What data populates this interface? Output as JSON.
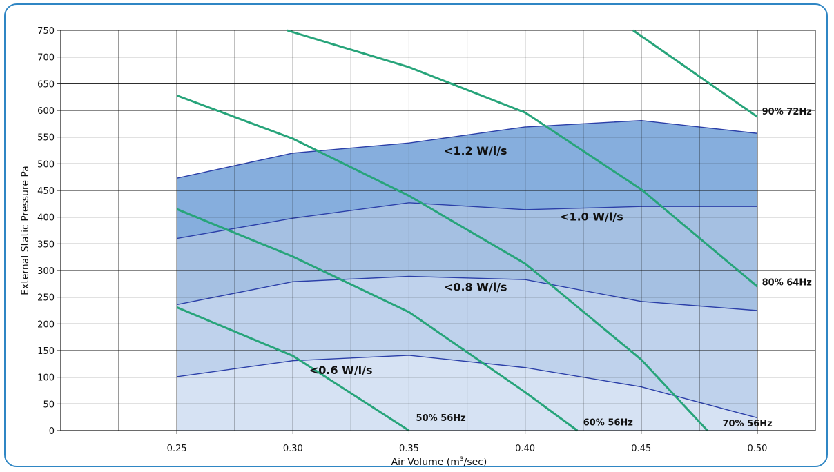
{
  "chart_data": {
    "type": "area",
    "xlabel_main": "Air Volume (m",
    "xlabel_sup": "3",
    "xlabel_tail": "/sec)",
    "ylabel": "External Static Pressure Pa",
    "xlim": [
      0.2,
      0.525
    ],
    "ylim": [
      0,
      750
    ],
    "x_ticks": [
      {
        "value": 0.25,
        "label": "0.25"
      },
      {
        "value": 0.3,
        "label": "0.30"
      },
      {
        "value": 0.35,
        "label": "0.35"
      },
      {
        "value": 0.4,
        "label": "0.40"
      },
      {
        "value": 0.45,
        "label": "0.45"
      },
      {
        "value": 0.5,
        "label": "0.50"
      }
    ],
    "y_ticks": [
      0,
      50,
      100,
      150,
      200,
      250,
      300,
      350,
      400,
      450,
      500,
      550,
      600,
      650,
      700,
      750
    ],
    "grid": true,
    "bands": [
      {
        "name": "<1.2 W/l/s",
        "color": "#86aedd",
        "label_x": 0.365,
        "label_y": 517,
        "x": [
          0.25,
          0.3,
          0.35,
          0.4,
          0.45,
          0.5
        ],
        "y": [
          473,
          520,
          539,
          569,
          581,
          557
        ]
      },
      {
        "name": "<1.0 W/l/s",
        "color": "#a5c0e2",
        "label_x": 0.415,
        "label_y": 394,
        "x": [
          0.25,
          0.3,
          0.35,
          0.4,
          0.45,
          0.5
        ],
        "y": [
          360,
          398,
          427,
          414,
          420,
          420
        ]
      },
      {
        "name": "<0.8 W/l/s",
        "color": "#bfd2ec",
        "label_x": 0.365,
        "label_y": 262,
        "x": [
          0.25,
          0.3,
          0.35,
          0.4,
          0.45,
          0.5
        ],
        "y": [
          236,
          279,
          289,
          283,
          242,
          225
        ]
      },
      {
        "name": "<0.6 W/l/s",
        "color": "#d6e2f3",
        "label_x": 0.307,
        "label_y": 106,
        "x": [
          0.25,
          0.3,
          0.35,
          0.4,
          0.45,
          0.5
        ],
        "y": [
          101,
          131,
          141,
          118,
          82,
          24
        ]
      }
    ],
    "fan_curves": [
      {
        "name": "50% 56Hz",
        "label_x": 0.353,
        "label_y": 18,
        "x": [
          0.25,
          0.3,
          0.35
        ],
        "y": [
          231,
          140,
          0
        ]
      },
      {
        "name": "60% 56Hz",
        "label_x": 0.425,
        "label_y": 10,
        "x": [
          0.25,
          0.3,
          0.35,
          0.4,
          0.4225
        ],
        "y": [
          415,
          326,
          222,
          72,
          0
        ]
      },
      {
        "name": "70% 56Hz",
        "label_x": 0.485,
        "label_y": 8,
        "x": [
          0.25,
          0.3,
          0.35,
          0.4,
          0.45,
          0.4785
        ],
        "y": [
          628,
          547,
          440,
          313,
          133,
          0
        ]
      },
      {
        "name": "80% 64Hz",
        "label_x": 0.502,
        "label_y": 272,
        "x": [
          0.2975,
          0.35,
          0.4,
          0.45,
          0.5
        ],
        "y": [
          750,
          681,
          596,
          452,
          270
        ]
      },
      {
        "name": "90% 72Hz",
        "label_x": 0.502,
        "label_y": 592,
        "x": [
          0.4465,
          0.5
        ],
        "y": [
          750,
          588
        ]
      }
    ],
    "colors": {
      "band_edge": "#2b3fa8",
      "fan_curve": "#27a47a",
      "grid": "#111111"
    }
  }
}
